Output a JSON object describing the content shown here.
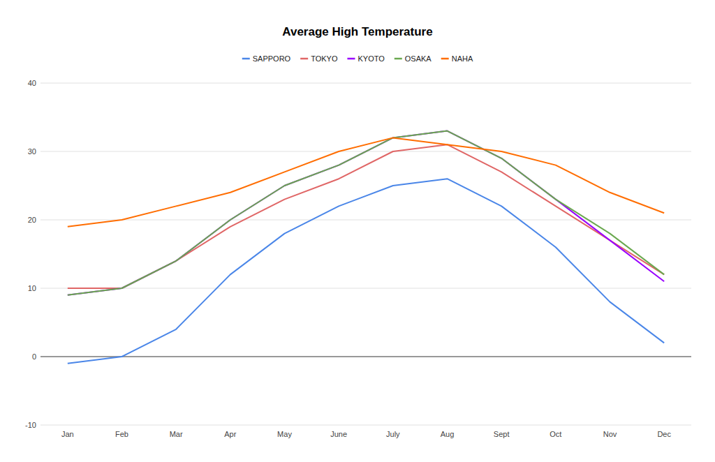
{
  "chart_data": {
    "type": "line",
    "title": "Average High Temperature",
    "categories": [
      "Jan",
      "Feb",
      "Mar",
      "Apr",
      "May",
      "June",
      "July",
      "Aug",
      "Sept",
      "Oct",
      "Nov",
      "Dec"
    ],
    "series": [
      {
        "name": "SAPPORO",
        "color": "#4a86e8",
        "values": [
          -1,
          0,
          4,
          12,
          18,
          22,
          25,
          26,
          22,
          16,
          8,
          2
        ]
      },
      {
        "name": "TOKYO",
        "color": "#e06666",
        "values": [
          10,
          10,
          14,
          19,
          23,
          26,
          30,
          31,
          27,
          22,
          17,
          12
        ]
      },
      {
        "name": "KYOTO",
        "color": "#9900ff",
        "values": [
          9,
          10,
          14,
          20,
          25,
          28,
          32,
          33,
          29,
          23,
          17,
          11
        ]
      },
      {
        "name": "OSAKA",
        "color": "#6aa84f",
        "values": [
          9,
          10,
          14,
          20,
          25,
          28,
          32,
          33,
          29,
          23,
          18,
          12
        ]
      },
      {
        "name": "NAHA",
        "color": "#ff6d01",
        "values": [
          19,
          20,
          22,
          24,
          27,
          30,
          32,
          31,
          30,
          28,
          24,
          21
        ]
      }
    ],
    "ylim": [
      -10,
      40
    ],
    "yticks": [
      -10,
      0,
      10,
      20,
      30,
      40
    ],
    "grid": true,
    "legend": "top"
  }
}
